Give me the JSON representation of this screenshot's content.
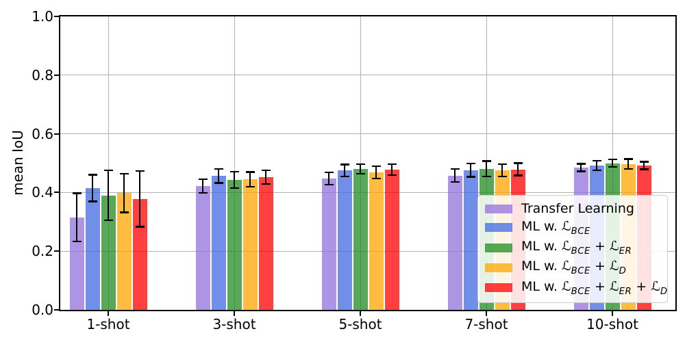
{
  "chart_data": {
    "type": "bar",
    "title": "",
    "xlabel": "",
    "ylabel": "mean IoU",
    "ylim": [
      0.0,
      1.0
    ],
    "y_ticks": [
      0.0,
      0.2,
      0.4,
      0.6,
      0.8,
      1.0
    ],
    "categories": [
      "1-shot",
      "3-shot",
      "5-shot",
      "7-shot",
      "10-shot"
    ],
    "grid": true,
    "gridline_color": "#b0b0b0",
    "errorbar_color": "#000000",
    "bar_alpha": 0.75,
    "legend_position": "lower right",
    "series": [
      {
        "name": "Transfer Learning",
        "label_parts": [
          {
            "t": "Transfer Learning"
          }
        ],
        "color": "#9370db",
        "values": [
          0.315,
          0.422,
          0.447,
          0.458,
          0.485
        ],
        "errors": [
          0.082,
          0.023,
          0.021,
          0.022,
          0.013
        ]
      },
      {
        "name": "ML w. L_BCE",
        "label_parts": [
          {
            "t": "ML w. "
          },
          {
            "t": "ℒ",
            "sub": "BCE"
          }
        ],
        "color": "#4169e1",
        "values": [
          0.415,
          0.456,
          0.475,
          0.476,
          0.492
        ],
        "errors": [
          0.045,
          0.024,
          0.02,
          0.023,
          0.016
        ]
      },
      {
        "name": "ML w. L_BCE + L_ER",
        "label_parts": [
          {
            "t": "ML w. "
          },
          {
            "t": "ℒ",
            "sub": "BCE"
          },
          {
            "t": " + "
          },
          {
            "t": "ℒ",
            "sub": "ER"
          }
        ],
        "color": "#228b22",
        "values": [
          0.39,
          0.443,
          0.48,
          0.481,
          0.5
        ],
        "errors": [
          0.085,
          0.028,
          0.016,
          0.026,
          0.013
        ]
      },
      {
        "name": "ML w. L_BCE + L_D",
        "label_parts": [
          {
            "t": "ML w. "
          },
          {
            "t": "ℒ",
            "sub": "BCE"
          },
          {
            "t": " + "
          },
          {
            "t": "ℒ",
            "sub": "D"
          }
        ],
        "color": "#ffa500",
        "values": [
          0.398,
          0.445,
          0.468,
          0.476,
          0.497
        ],
        "errors": [
          0.066,
          0.025,
          0.021,
          0.021,
          0.017
        ]
      },
      {
        "name": "ML w. L_BCE + L_ER + L_D",
        "label_parts": [
          {
            "t": "ML w. "
          },
          {
            "t": "ℒ",
            "sub": "BCE"
          },
          {
            "t": " + "
          },
          {
            "t": "ℒ",
            "sub": "ER"
          },
          {
            "t": " + "
          },
          {
            "t": "ℒ",
            "sub": "D"
          }
        ],
        "color": "#ff0000",
        "values": [
          0.378,
          0.452,
          0.478,
          0.479,
          0.492
        ],
        "errors": [
          0.095,
          0.023,
          0.019,
          0.021,
          0.013
        ]
      }
    ]
  }
}
